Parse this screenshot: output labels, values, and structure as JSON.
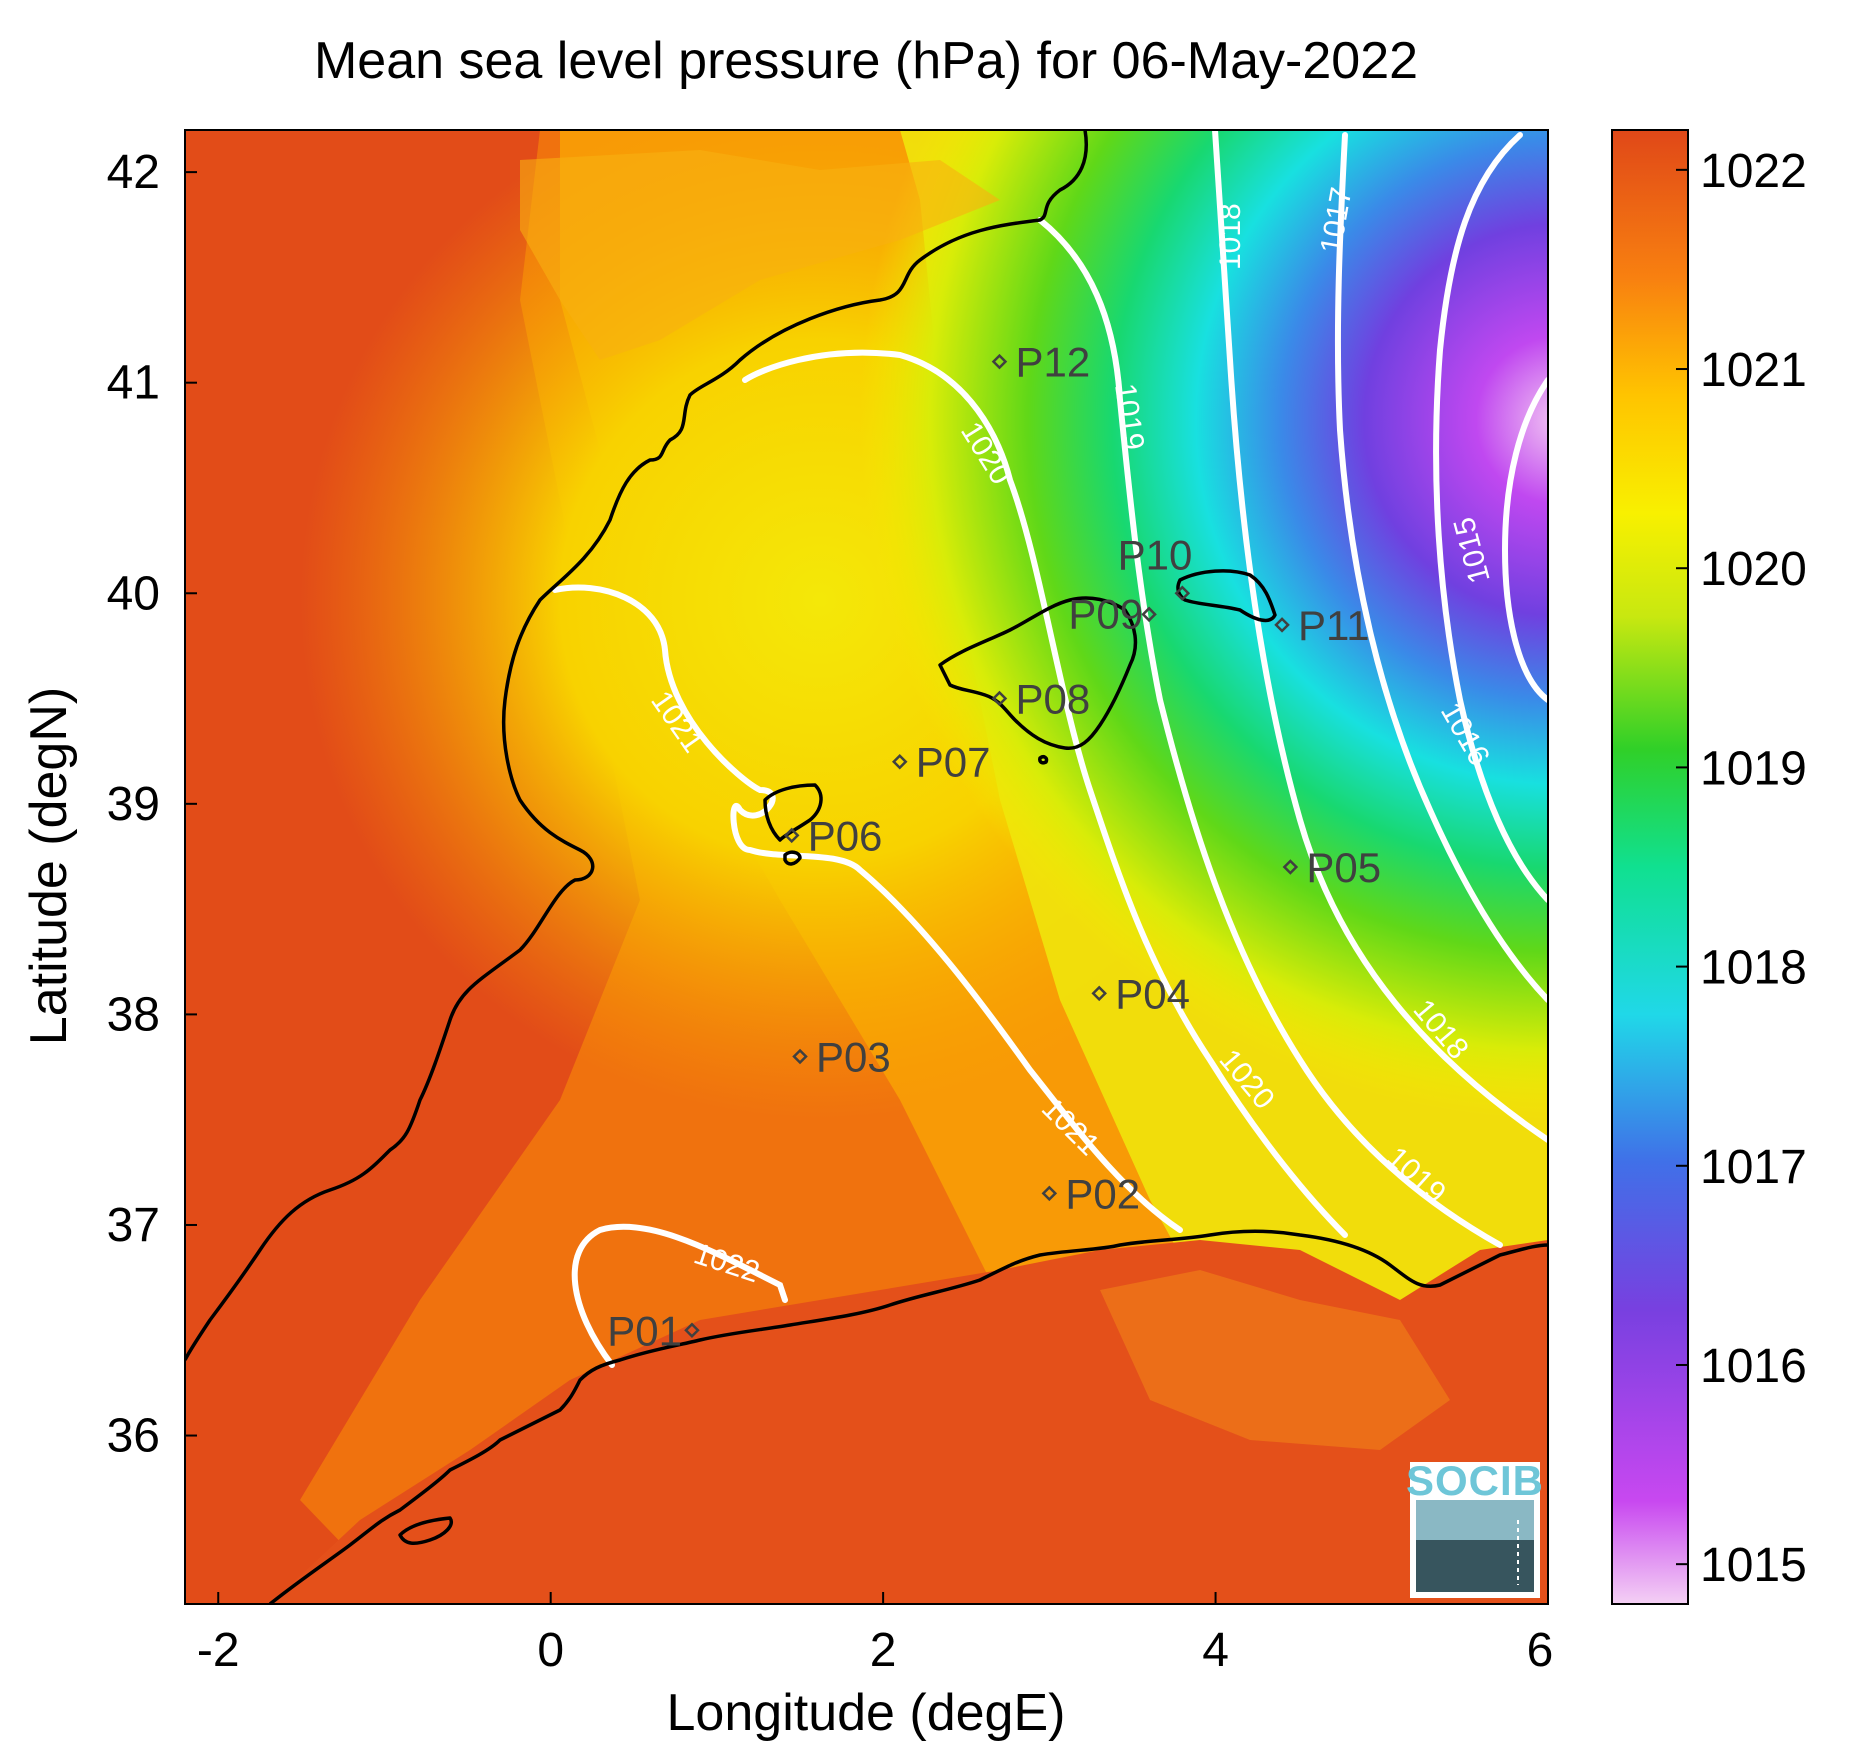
{
  "title": "Mean sea level pressure (hPa) for 06-May-2022",
  "xlabel": "Longitude (degE)",
  "ylabel": "Latitude (degN)",
  "x_ticks": [
    "-2",
    "0",
    "2",
    "4",
    "6"
  ],
  "y_ticks": [
    "42",
    "41",
    "40",
    "39",
    "38",
    "37",
    "36"
  ],
  "x_range": [
    -2.2,
    6.0
  ],
  "y_range": [
    35.2,
    42.2
  ],
  "colorbar": {
    "ticks": [
      "1022",
      "1021",
      "1020",
      "1019",
      "1018",
      "1017",
      "1016",
      "1015"
    ],
    "range": [
      1014.8,
      1022.2
    ],
    "colors": [
      "#f2c8f2",
      "#c040f0",
      "#7040e0",
      "#3a80e8",
      "#18e0e8",
      "#10d880",
      "#30d020",
      "#a8e010",
      "#f0f000",
      "#ffc000",
      "#f88010",
      "#e85018"
    ]
  },
  "contour_labels": [
    "1022",
    "1021",
    "1021",
    "1020",
    "1020",
    "1019",
    "1019",
    "1018",
    "1018",
    "1017",
    "1016",
    "1015"
  ],
  "stations": [
    {
      "id": "P01",
      "lon": 0.85,
      "lat": 36.5
    },
    {
      "id": "P02",
      "lon": 3.0,
      "lat": 37.15
    },
    {
      "id": "P03",
      "lon": 1.5,
      "lat": 37.8
    },
    {
      "id": "P04",
      "lon": 3.3,
      "lat": 38.1
    },
    {
      "id": "P05",
      "lon": 4.45,
      "lat": 38.7
    },
    {
      "id": "P06",
      "lon": 1.45,
      "lat": 38.85
    },
    {
      "id": "P07",
      "lon": 2.1,
      "lat": 39.2
    },
    {
      "id": "P08",
      "lon": 2.7,
      "lat": 39.5
    },
    {
      "id": "P09",
      "lon": 3.6,
      "lat": 39.9
    },
    {
      "id": "P10",
      "lon": 3.8,
      "lat": 40.0
    },
    {
      "id": "P11",
      "lon": 4.4,
      "lat": 39.85
    },
    {
      "id": "P12",
      "lon": 2.7,
      "lat": 41.1
    }
  ],
  "logo": {
    "text": "SOCIB"
  }
}
